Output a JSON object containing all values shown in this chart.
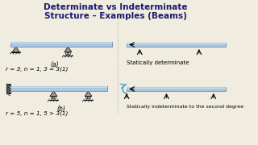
{
  "title_line1": "Determinate vs Indeterminate",
  "title_line2": "Structure – Examples (Beams)",
  "title_color": "#1a1a6e",
  "title_fontsize": 7.5,
  "bg_color": "#f0ece0",
  "label_a": "(a)",
  "label_b": "(b)",
  "eq_a": "r = 3, n = 1, 3 = 3(1)",
  "eq_b": "r = 5, n = 1, 5 > 3(1)",
  "text_a": "Statically determinate",
  "text_b": "Statically indeterminate to the second degree",
  "beam_color_top": "#c8dff0",
  "beam_color_main": "#a8c8e0",
  "beam_edge": "#7090aa",
  "support_color": "#999999",
  "wall_color": "#666666",
  "arrow_color": "#222222",
  "moment_color": "#3399cc"
}
